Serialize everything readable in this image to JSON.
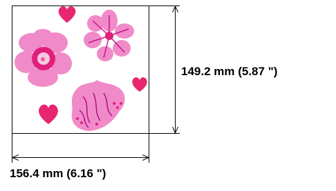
{
  "dimensions": {
    "height_label": "149.2 mm (5.87 \")",
    "width_label": "156.4 mm (6.16 \")"
  }
}
